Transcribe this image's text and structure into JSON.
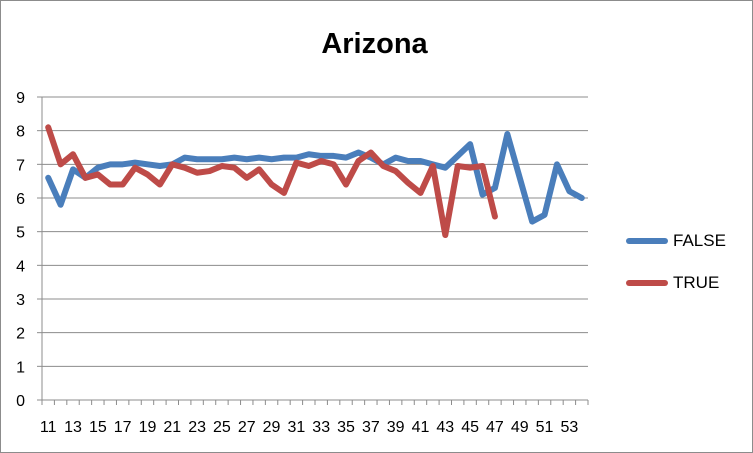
{
  "chart_data": {
    "type": "line",
    "title": "Arizona",
    "xlabel": "",
    "ylabel": "",
    "ylim": [
      0,
      9
    ],
    "yticks": [
      0,
      1,
      2,
      3,
      4,
      5,
      6,
      7,
      8,
      9
    ],
    "x": [
      11,
      12,
      13,
      14,
      15,
      16,
      17,
      18,
      19,
      20,
      21,
      22,
      23,
      24,
      25,
      26,
      27,
      28,
      29,
      30,
      31,
      32,
      33,
      34,
      35,
      36,
      37,
      38,
      39,
      40,
      41,
      42,
      43,
      44,
      45,
      46,
      47,
      48,
      49,
      50,
      51,
      52,
      53,
      54
    ],
    "xtick_labels": [
      "11",
      "13",
      "15",
      "17",
      "19",
      "21",
      "23",
      "25",
      "27",
      "29",
      "31",
      "33",
      "35",
      "37",
      "39",
      "41",
      "43",
      "45",
      "47",
      "49",
      "51",
      "53"
    ],
    "grid": "horizontal",
    "legend_position": "right",
    "series": [
      {
        "name": "FALSE",
        "color": "#4a7ebb",
        "values": [
          6.6,
          5.8,
          6.85,
          6.6,
          6.9,
          7.0,
          7.0,
          7.05,
          7.0,
          6.95,
          7.0,
          7.2,
          7.15,
          7.15,
          7.15,
          7.2,
          7.15,
          7.2,
          7.15,
          7.2,
          7.2,
          7.3,
          7.25,
          7.25,
          7.2,
          7.35,
          7.2,
          7.0,
          7.2,
          7.1,
          7.1,
          7.0,
          6.9,
          7.25,
          7.6,
          6.1,
          6.3,
          7.9,
          6.6,
          5.3,
          5.5,
          7.0,
          6.2,
          6.0
        ]
      },
      {
        "name": "TRUE",
        "color": "#be4b48",
        "values": [
          8.1,
          7.0,
          7.3,
          6.6,
          6.7,
          6.4,
          6.4,
          6.9,
          6.7,
          6.4,
          7.0,
          6.9,
          6.75,
          6.8,
          6.95,
          6.9,
          6.6,
          6.85,
          6.4,
          6.15,
          7.05,
          6.95,
          7.1,
          7.0,
          6.4,
          7.1,
          7.35,
          6.95,
          6.8,
          6.45,
          6.15,
          6.95,
          4.9,
          6.95,
          6.9,
          6.95,
          5.45,
          null,
          null,
          null,
          null,
          null,
          null,
          null
        ]
      }
    ]
  }
}
